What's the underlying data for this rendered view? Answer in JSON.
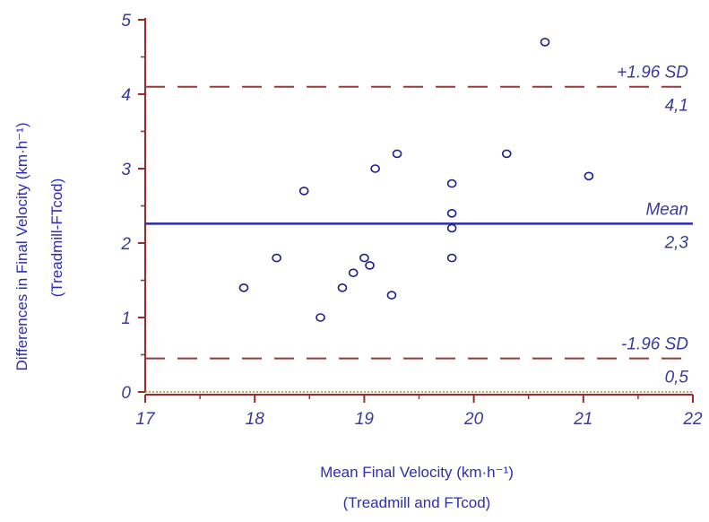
{
  "chart_data": {
    "type": "scatter",
    "title": "",
    "xlabel": {
      "line1": "Mean Final Velocity (km·h⁻¹)",
      "line2": "(Treadmill and FTcod)"
    },
    "ylabel": {
      "line1": "Differences in Final Velocity (km·h⁻¹)",
      "line2": "(Treadmill-FTcod)"
    },
    "xlim": [
      17,
      22
    ],
    "ylim": [
      0,
      5
    ],
    "x_ticks": [
      "17",
      "18",
      "19",
      "20",
      "21",
      "22"
    ],
    "y_ticks": [
      "0",
      "1",
      "2",
      "3",
      "4",
      "5"
    ],
    "grid": false,
    "points": [
      {
        "x": 17.9,
        "y": 1.4
      },
      {
        "x": 18.2,
        "y": 1.8
      },
      {
        "x": 18.45,
        "y": 2.7
      },
      {
        "x": 18.6,
        "y": 1.0
      },
      {
        "x": 18.8,
        "y": 1.4
      },
      {
        "x": 18.9,
        "y": 1.6
      },
      {
        "x": 19.0,
        "y": 1.8
      },
      {
        "x": 19.05,
        "y": 1.7
      },
      {
        "x": 19.1,
        "y": 3.0
      },
      {
        "x": 19.25,
        "y": 1.3
      },
      {
        "x": 19.3,
        "y": 3.2
      },
      {
        "x": 19.8,
        "y": 2.8
      },
      {
        "x": 19.8,
        "y": 2.4
      },
      {
        "x": 19.8,
        "y": 2.2
      },
      {
        "x": 19.8,
        "y": 1.8
      },
      {
        "x": 20.3,
        "y": 3.2
      },
      {
        "x": 20.65,
        "y": 4.7
      },
      {
        "x": 21.05,
        "y": 2.9
      }
    ],
    "reference_lines": [
      {
        "name": "upper",
        "y": 4.1,
        "style": "dashed",
        "color": "#9b3a3a",
        "label_top": "+1.96 SD",
        "label_bottom": "4,1"
      },
      {
        "name": "mean",
        "y": 2.26,
        "style": "solid",
        "color": "#2b2ba8",
        "label_top": "Mean",
        "label_bottom": "2,3"
      },
      {
        "name": "lower",
        "y": 0.45,
        "style": "dashed",
        "color": "#9b3a3a",
        "label_top": "-1.96 SD",
        "label_bottom": "0,5"
      }
    ],
    "colors": {
      "axis": "#9b2a2a",
      "text": "#3a3a9c",
      "title": "#2d2db5",
      "marker": "#1e1e8c",
      "baseline": "#c8852a"
    }
  }
}
